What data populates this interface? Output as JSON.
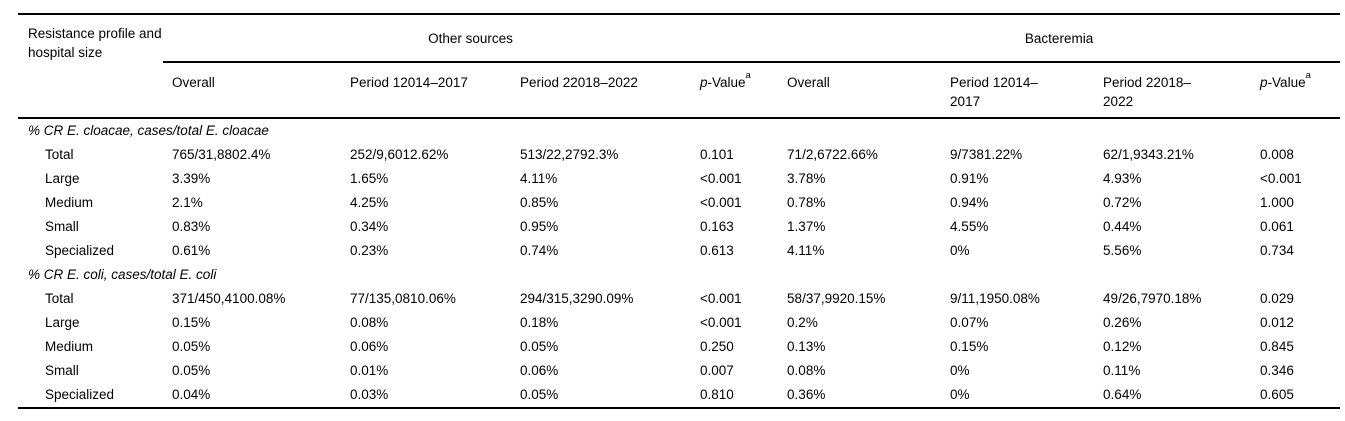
{
  "page": {
    "background_color": "#ffffff",
    "text_color": "#000000",
    "rule_color": "#000000"
  },
  "table": {
    "corner_header": "Resistance profile and hospital size",
    "groups": [
      {
        "label": "Other sources"
      },
      {
        "label": "Bacteremia"
      }
    ],
    "subheaders": {
      "os_overall": "Overall",
      "os_period1": "Period 12014–2017",
      "os_period2": "Period 22018–2022",
      "b_overall": "Overall",
      "b_period1": "Period 12014–2017",
      "b_period2": "Period 22018–2022",
      "pvalue": {
        "p": "p",
        "rest": "-Value",
        "sup": "a"
      }
    },
    "sections": [
      {
        "title": "% CR E. cloacae, cases/total E. cloacae",
        "rows": [
          {
            "label": "Total",
            "values": [
              "765/31,8802.4%",
              "252/9,6012.62%",
              "513/22,2792.3%",
              "0.101",
              "71/2,6722.66%",
              "9/7381.22%",
              "62/1,9343.21%",
              "0.008"
            ]
          },
          {
            "label": "Large",
            "values": [
              "3.39%",
              "1.65%",
              "4.11%",
              "<0.001",
              "3.78%",
              "0.91%",
              "4.93%",
              "<0.001"
            ]
          },
          {
            "label": "Medium",
            "values": [
              "2.1%",
              "4.25%",
              "0.85%",
              "<0.001",
              "0.78%",
              "0.94%",
              "0.72%",
              "1.000"
            ]
          },
          {
            "label": "Small",
            "values": [
              "0.83%",
              "0.34%",
              "0.95%",
              "0.163",
              "1.37%",
              "4.55%",
              "0.44%",
              "0.061"
            ]
          },
          {
            "label": "Specialized",
            "values": [
              "0.61%",
              "0.23%",
              "0.74%",
              "0.613",
              "4.11%",
              "0%",
              "5.56%",
              "0.734"
            ]
          }
        ]
      },
      {
        "title": "% CR E. coli, cases/total E. coli",
        "rows": [
          {
            "label": "Total",
            "values": [
              "371/450,4100.08%",
              "77/135,0810.06%",
              "294/315,3290.09%",
              "<0.001",
              "58/37,9920.15%",
              "9/11,1950.08%",
              "49/26,7970.18%",
              "0.029"
            ]
          },
          {
            "label": "Large",
            "values": [
              "0.15%",
              "0.08%",
              "0.18%",
              "<0.001",
              "0.2%",
              "0.07%",
              "0.26%",
              "0.012"
            ]
          },
          {
            "label": "Medium",
            "values": [
              "0.05%",
              "0.06%",
              "0.05%",
              "0.250",
              "0.13%",
              "0.15%",
              "0.12%",
              "0.845"
            ]
          },
          {
            "label": "Small",
            "values": [
              "0.05%",
              "0.01%",
              "0.06%",
              "0.007",
              "0.08%",
              "0%",
              "0.11%",
              "0.346"
            ]
          },
          {
            "label": "Specialized",
            "values": [
              "0.04%",
              "0.03%",
              "0.05%",
              "0.810",
              "0.36%",
              "0%",
              "0.64%",
              "0.605"
            ]
          }
        ]
      }
    ]
  }
}
